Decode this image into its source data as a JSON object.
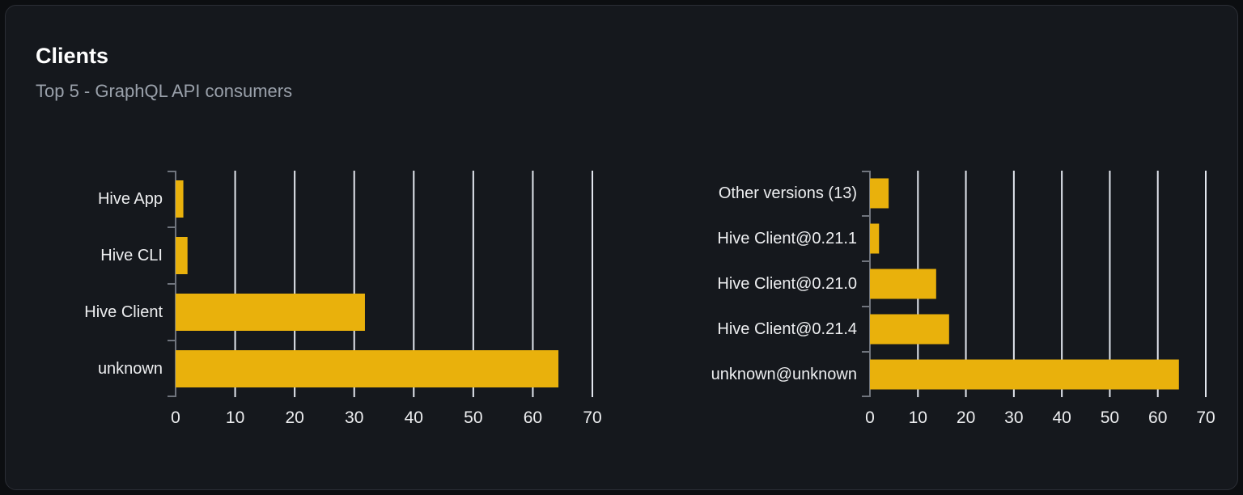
{
  "card": {
    "title": "Clients",
    "subtitle": "Top 5 - GraphQL API consumers"
  },
  "colors": {
    "page_bg": "#0c0e11",
    "card_bg": "#15181d",
    "card_border": "#2b2e35",
    "title": "#ffffff",
    "subtitle": "#9aa1ab",
    "bar": "#e9b10c",
    "gridline": "#e2e6ee",
    "axis": "#6f747d",
    "tick_label": "#edeef0"
  },
  "chart_data": [
    {
      "type": "bar",
      "orientation": "horizontal",
      "name": "top-clients",
      "categories": [
        "Hive App",
        "Hive CLI",
        "Hive Client",
        "unknown"
      ],
      "values": [
        1.3,
        2,
        31.8,
        64.3
      ],
      "xlim": [
        0,
        70
      ],
      "xticks": [
        0,
        10,
        20,
        30,
        40,
        50,
        60,
        70
      ],
      "xlabel": "",
      "ylabel": "",
      "grid": true,
      "legend": false,
      "bar_color": "#e9b10c"
    },
    {
      "type": "bar",
      "orientation": "horizontal",
      "name": "top-client-versions",
      "categories": [
        "Other versions (13)",
        "Hive Client@0.21.1",
        "Hive Client@0.21.0",
        "Hive Client@0.21.4",
        "unknown@unknown"
      ],
      "values": [
        3.9,
        1.9,
        13.8,
        16.5,
        64.4
      ],
      "xlim": [
        0,
        70
      ],
      "xticks": [
        0,
        10,
        20,
        30,
        40,
        50,
        60,
        70
      ],
      "xlabel": "",
      "ylabel": "",
      "grid": true,
      "legend": false,
      "bar_color": "#e9b10c"
    }
  ]
}
